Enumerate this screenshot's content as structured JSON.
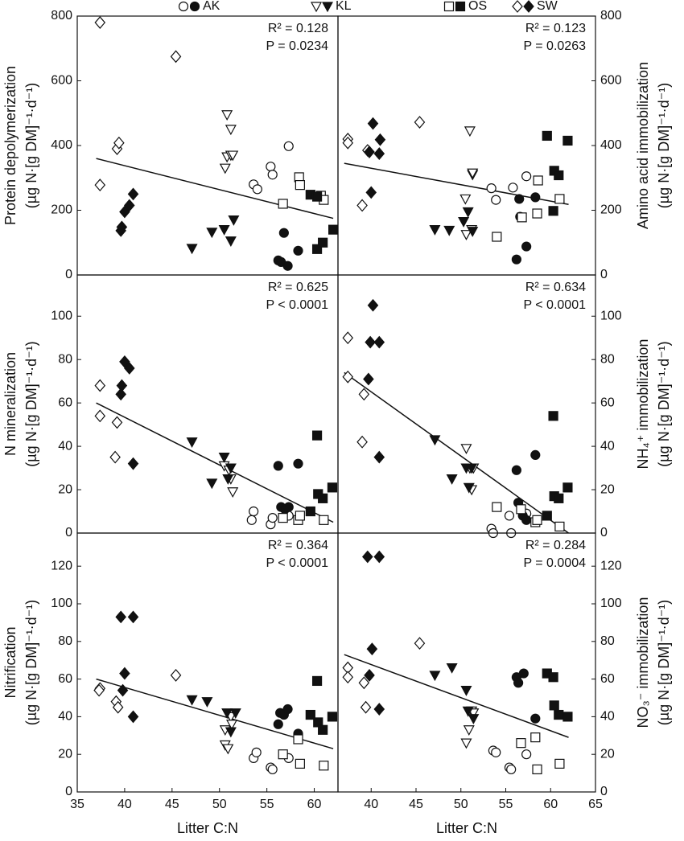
{
  "chart_data": [
    {
      "type": "scatter",
      "ylabel": [
        "Protein depolymerization",
        "(µg N·[g DM]⁻¹·d⁻¹)"
      ],
      "annotations": [
        "R² = 0.128",
        "P = 0.0234"
      ],
      "color": "#111",
      "yaxis_side": "left",
      "xlim": [
        35,
        62.5
      ],
      "ylim": [
        0,
        800
      ],
      "yticks": [
        0,
        200,
        400,
        600,
        800
      ],
      "fit": {
        "x": [
          37,
          62
        ],
        "y": [
          360,
          175
        ]
      },
      "series": [
        {
          "name": "AK",
          "marker": "circle",
          "filled": false,
          "x": [
            53.6,
            54.0,
            55.4,
            55.6,
            57.3
          ],
          "values": [
            280,
            265,
            335,
            310,
            398
          ]
        },
        {
          "marker": "circle",
          "filled": true,
          "x": [
            56.2,
            56.5,
            56.8,
            57.2,
            58.3
          ],
          "values": [
            45,
            40,
            130,
            28,
            75
          ]
        },
        {
          "name": "KL",
          "marker": "triangle",
          "filled": false,
          "x": [
            50.8,
            51.2,
            50.6,
            50.8,
            51.2,
            51.4
          ],
          "values": [
            495,
            450,
            330,
            365,
            370,
            370
          ]
        },
        {
          "marker": "triangle",
          "filled": true,
          "x": [
            47.1,
            49.2,
            50.5,
            51.2,
            51.5
          ],
          "values": [
            82,
            132,
            140,
            105,
            170
          ]
        },
        {
          "name": "OS",
          "marker": "square",
          "filled": false,
          "x": [
            56.7,
            58.4,
            58.5,
            60.7,
            61.0
          ],
          "values": [
            220,
            302,
            278,
            245,
            232
          ]
        },
        {
          "marker": "square",
          "filled": true,
          "x": [
            59.6,
            60.3,
            60.3,
            60.9,
            62.0
          ],
          "values": [
            248,
            242,
            80,
            100,
            140
          ]
        },
        {
          "name": "SW",
          "marker": "diamond",
          "filled": false,
          "x": [
            37.4,
            45.4,
            39.2,
            39.4,
            37.4
          ],
          "values": [
            780,
            675,
            390,
            408,
            278
          ]
        },
        {
          "marker": "diamond",
          "filled": true,
          "x": [
            39.6,
            39.7,
            40.0,
            40.5,
            40.9
          ],
          "values": [
            137,
            148,
            195,
            215,
            250
          ]
        }
      ]
    },
    {
      "type": "scatter",
      "ylabel": [
        "Amino acid immobilization",
        "(µg N·[g DM]⁻¹·d⁻¹)"
      ],
      "annotations": [
        "R² = 0.123",
        "P = 0.0263"
      ],
      "color": "#111",
      "yaxis_side": "right",
      "xlim": [
        36.3,
        65
      ],
      "ylim": [
        0,
        800
      ],
      "yticks": [
        0,
        200,
        400,
        600,
        800
      ],
      "fit": {
        "x": [
          37,
          62
        ],
        "y": [
          345,
          218
        ]
      },
      "series": [
        {
          "marker": "circle",
          "filled": false,
          "x": [
            53.4,
            53.9,
            55.8,
            57.3
          ],
          "values": [
            268,
            232,
            270,
            305
          ]
        },
        {
          "marker": "circle",
          "filled": true,
          "x": [
            56.2,
            56.5,
            56.6,
            57.3,
            58.3
          ],
          "values": [
            48,
            235,
            180,
            88,
            240
          ]
        },
        {
          "marker": "triangle",
          "filled": false,
          "x": [
            51.0,
            51.3,
            51.3,
            50.5,
            50.6,
            51.2
          ],
          "values": [
            445,
            310,
            315,
            235,
            125,
            140
          ]
        },
        {
          "marker": "triangle",
          "filled": true,
          "x": [
            47.1,
            48.7,
            50.3,
            50.8,
            51.3
          ],
          "values": [
            140,
            138,
            165,
            195,
            135
          ]
        },
        {
          "marker": "square",
          "filled": false,
          "x": [
            54.0,
            56.8,
            58.5,
            58.6,
            61.0
          ],
          "values": [
            118,
            178,
            190,
            292,
            235
          ]
        },
        {
          "marker": "square",
          "filled": true,
          "x": [
            59.6,
            60.4,
            60.9,
            61.9,
            60.3
          ],
          "values": [
            430,
            322,
            308,
            415,
            198
          ]
        },
        {
          "marker": "diamond",
          "filled": false,
          "x": [
            37.4,
            37.4,
            39.0,
            39.6,
            45.4
          ],
          "values": [
            420,
            408,
            215,
            385,
            472
          ]
        },
        {
          "marker": "diamond",
          "filled": true,
          "x": [
            39.8,
            40.2,
            40.9,
            41.0,
            40.0
          ],
          "values": [
            380,
            468,
            375,
            418,
            255
          ]
        }
      ]
    },
    {
      "type": "scatter",
      "ylabel": [
        "N mineralization",
        "(µg N·[g DM]⁻¹·d⁻¹)"
      ],
      "annotations": [
        "R² = 0.625",
        "P < 0.0001"
      ],
      "color": "#111",
      "yaxis_side": "left",
      "xlim": [
        35,
        62.5
      ],
      "ylim": [
        0,
        119
      ],
      "yticks": [
        0,
        20,
        40,
        60,
        80,
        100
      ],
      "fit": {
        "x": [
          37,
          62
        ],
        "y": [
          60,
          5
        ]
      },
      "series": [
        {
          "marker": "circle",
          "filled": false,
          "x": [
            53.4,
            53.6,
            55.4,
            55.6,
            57.3
          ],
          "values": [
            6,
            10,
            4,
            7,
            8
          ]
        },
        {
          "marker": "circle",
          "filled": true,
          "x": [
            56.2,
            56.5,
            56.9,
            57.3,
            58.3
          ],
          "values": [
            31,
            12,
            11,
            12,
            32
          ]
        },
        {
          "marker": "triangle",
          "filled": false,
          "x": [
            50.5,
            51.0,
            51.2,
            51.4
          ],
          "values": [
            31,
            29,
            25,
            19
          ]
        },
        {
          "marker": "triangle",
          "filled": true,
          "x": [
            47.1,
            49.2,
            50.5,
            50.9,
            51.2
          ],
          "values": [
            42,
            23,
            35,
            25,
            30
          ]
        },
        {
          "marker": "square",
          "filled": false,
          "x": [
            56.7,
            58.3,
            58.5,
            61.0
          ],
          "values": [
            7,
            6,
            8,
            6
          ]
        },
        {
          "marker": "square",
          "filled": true,
          "x": [
            59.6,
            60.3,
            60.4,
            60.9,
            61.9
          ],
          "values": [
            10,
            45,
            18,
            16,
            21
          ]
        },
        {
          "marker": "diamond",
          "filled": false,
          "x": [
            37.4,
            37.4,
            39.2,
            39.0
          ],
          "values": [
            68,
            54,
            51,
            35
          ]
        },
        {
          "marker": "diamond",
          "filled": true,
          "x": [
            39.6,
            39.7,
            40.0,
            40.5,
            40.9
          ],
          "values": [
            64,
            68,
            79,
            76,
            32
          ]
        }
      ]
    },
    {
      "type": "scatter",
      "ylabel": [
        "NH₄⁺ immobilization",
        "(µg N·[g DM]⁻¹·d⁻¹)"
      ],
      "annotations": [
        "R² = 0.634",
        "P < 0.0001"
      ],
      "color": "#111",
      "yaxis_side": "right",
      "xlim": [
        36.3,
        65
      ],
      "ylim": [
        0,
        119
      ],
      "yticks": [
        0,
        20,
        40,
        60,
        80,
        100
      ],
      "fit": {
        "x": [
          37,
          62
        ],
        "y": [
          74,
          0
        ]
      },
      "series": [
        {
          "marker": "circle",
          "filled": false,
          "x": [
            53.4,
            53.6,
            55.4,
            55.6,
            57.3
          ],
          "values": [
            2,
            0,
            8,
            0,
            9
          ]
        },
        {
          "marker": "circle",
          "filled": true,
          "x": [
            56.2,
            56.4,
            56.9,
            57.3,
            58.3
          ],
          "values": [
            29,
            14,
            8,
            6,
            36
          ]
        },
        {
          "marker": "triangle",
          "filled": false,
          "x": [
            50.6,
            51.0,
            51.2,
            51.4
          ],
          "values": [
            39,
            30,
            20,
            30
          ]
        },
        {
          "marker": "triangle",
          "filled": true,
          "x": [
            47.1,
            49.0,
            50.6,
            50.9,
            51.2
          ],
          "values": [
            43,
            25,
            30,
            21,
            30
          ]
        },
        {
          "marker": "square",
          "filled": false,
          "x": [
            54.0,
            56.7,
            58.3,
            58.5,
            61.0
          ],
          "values": [
            12,
            11,
            5,
            6,
            3
          ]
        },
        {
          "marker": "square",
          "filled": true,
          "x": [
            59.6,
            60.3,
            60.4,
            60.9,
            61.9
          ],
          "values": [
            8,
            54,
            17,
            16,
            21
          ]
        },
        {
          "marker": "diamond",
          "filled": false,
          "x": [
            37.4,
            37.4,
            39.2,
            39.0
          ],
          "values": [
            90,
            72,
            64,
            42
          ]
        },
        {
          "marker": "diamond",
          "filled": true,
          "x": [
            39.7,
            39.9,
            40.2,
            40.9,
            40.9
          ],
          "values": [
            71,
            88,
            105,
            88,
            35
          ]
        }
      ]
    },
    {
      "type": "scatter",
      "ylabel": [
        "Nitrification",
        "(µg N·[g DM]⁻¹·d⁻¹)"
      ],
      "annotations": [
        "R² = 0.364",
        "P < 0.0001"
      ],
      "color": "#111",
      "yaxis_side": "left",
      "xlabel": "Litter C:N",
      "xlim": [
        35,
        62.5
      ],
      "xticks": [
        35,
        40,
        45,
        50,
        55,
        60
      ],
      "ylim": [
        0,
        137.6
      ],
      "yticks": [
        0,
        20,
        40,
        60,
        80,
        100,
        120
      ],
      "fit": {
        "x": [
          37,
          62
        ],
        "y": [
          60,
          23
        ]
      },
      "series": [
        {
          "marker": "circle",
          "filled": false,
          "x": [
            53.6,
            53.9,
            55.4,
            55.6,
            57.3
          ],
          "values": [
            18,
            21,
            13,
            12,
            18
          ]
        },
        {
          "marker": "circle",
          "filled": true,
          "x": [
            56.2,
            56.4,
            56.8,
            57.2,
            58.3
          ],
          "values": [
            36,
            42,
            41,
            44,
            31
          ]
        },
        {
          "marker": "triangle",
          "filled": false,
          "x": [
            50.6,
            50.6,
            50.9,
            51.2,
            51.3
          ],
          "values": [
            25,
            33,
            23,
            40,
            36
          ]
        },
        {
          "marker": "triangle",
          "filled": true,
          "x": [
            47.1,
            48.7,
            50.8,
            51.2,
            51.7
          ],
          "values": [
            49,
            48,
            42,
            32,
            42
          ]
        },
        {
          "marker": "square",
          "filled": false,
          "x": [
            56.7,
            58.3,
            58.5,
            61.0
          ],
          "values": [
            20,
            28,
            15,
            14
          ]
        },
        {
          "marker": "square",
          "filled": true,
          "x": [
            59.6,
            60.3,
            60.4,
            60.9,
            61.9
          ],
          "values": [
            41,
            59,
            37,
            33,
            40
          ]
        },
        {
          "marker": "diamond",
          "filled": false,
          "x": [
            37.4,
            37.3,
            39.1,
            39.3,
            45.4
          ],
          "values": [
            55,
            54,
            48,
            45,
            62
          ]
        },
        {
          "marker": "diamond",
          "filled": true,
          "x": [
            39.6,
            40.9,
            40.0,
            39.8,
            40.9
          ],
          "values": [
            93,
            93,
            63,
            54,
            40
          ]
        }
      ]
    },
    {
      "type": "scatter",
      "ylabel": [
        "NO₃⁻ immobilization",
        "(µg N·[g DM]⁻¹·d⁻¹)"
      ],
      "annotations": [
        "R² = 0.284",
        "P = 0.0004"
      ],
      "color": "#111",
      "yaxis_side": "right",
      "xlabel": "Litter C:N",
      "xlim": [
        36.3,
        65
      ],
      "xticks": [
        40,
        45,
        50,
        55,
        60,
        65
      ],
      "ylim": [
        0,
        137.6
      ],
      "yticks": [
        0,
        20,
        40,
        60,
        80,
        100,
        120
      ],
      "fit": {
        "x": [
          37,
          62
        ],
        "y": [
          73,
          29
        ]
      },
      "series": [
        {
          "marker": "circle",
          "filled": false,
          "x": [
            53.6,
            53.9,
            55.4,
            55.6,
            57.3
          ],
          "values": [
            22,
            21,
            13,
            12,
            20
          ]
        },
        {
          "marker": "circle",
          "filled": true,
          "x": [
            56.2,
            56.4,
            57.0,
            58.3
          ],
          "values": [
            61,
            58,
            63,
            39
          ]
        },
        {
          "marker": "triangle",
          "filled": false,
          "x": [
            50.6,
            50.9,
            51.2,
            51.4
          ],
          "values": [
            26,
            33,
            43,
            42
          ]
        },
        {
          "marker": "triangle",
          "filled": true,
          "x": [
            47.1,
            49.0,
            50.6,
            50.8,
            51.4
          ],
          "values": [
            62,
            66,
            54,
            43,
            39
          ]
        },
        {
          "marker": "square",
          "filled": false,
          "x": [
            56.7,
            58.3,
            58.5,
            61.0
          ],
          "values": [
            26,
            29,
            12,
            15
          ]
        },
        {
          "marker": "square",
          "filled": true,
          "x": [
            59.6,
            60.3,
            60.4,
            60.9,
            61.9
          ],
          "values": [
            63,
            61,
            46,
            41,
            40
          ]
        },
        {
          "marker": "diamond",
          "filled": false,
          "x": [
            37.4,
            37.4,
            39.2,
            39.4,
            45.4
          ],
          "values": [
            66,
            61,
            58,
            45,
            79
          ]
        },
        {
          "marker": "diamond",
          "filled": true,
          "x": [
            39.6,
            40.9,
            40.1,
            39.8,
            40.9
          ],
          "values": [
            125,
            125,
            76,
            62,
            44
          ]
        }
      ]
    }
  ]
}
